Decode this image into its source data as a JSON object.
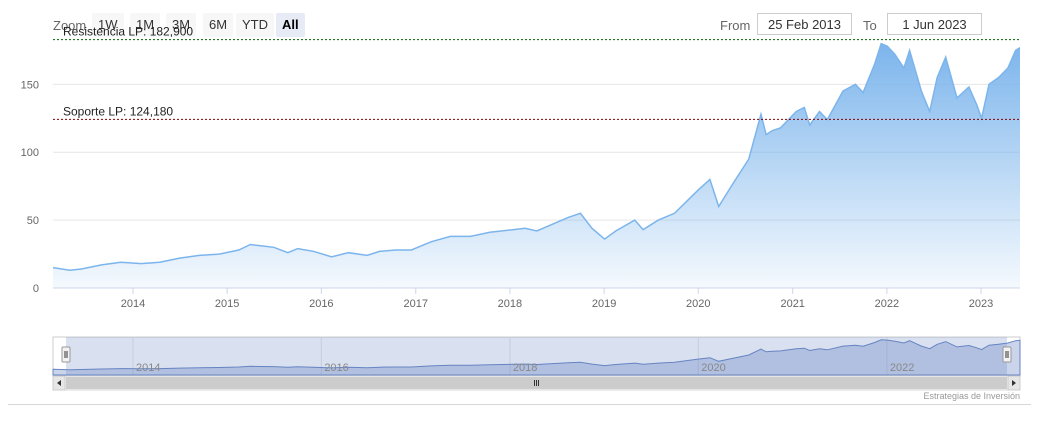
{
  "toolbar": {
    "zoom_label": "Zoom",
    "buttons": [
      "1W",
      "1M",
      "3M",
      "6M",
      "YTD",
      "All"
    ],
    "active": "All",
    "from_label": "From",
    "from_value": "25 Feb 2013",
    "to_label": "To",
    "to_value": "1 Jun 2023"
  },
  "credits": "Estrategias de Inversión",
  "colors": {
    "line": "#7cb5ec",
    "resistance": "#006400",
    "support": "#8b0000",
    "navigator": "#6685c2"
  },
  "chart_data": {
    "type": "area",
    "title": "",
    "xlabel": "",
    "ylabel": "",
    "x_ticks": [
      "2014",
      "2015",
      "2016",
      "2017",
      "2018",
      "2019",
      "2020",
      "2021",
      "2022",
      "2023"
    ],
    "y_ticks": [
      "0",
      "50",
      "100",
      "150"
    ],
    "ylim": [
      0,
      190
    ],
    "xlim": [
      "2013-02-25",
      "2023-06-01"
    ],
    "grid": true,
    "annotations": [
      {
        "label": "Resistencia LP: 182,900",
        "value": 182.9,
        "style": "dashed",
        "color": "#006400"
      },
      {
        "label": "Soporte LP: 124,180",
        "value": 124.18,
        "style": "dashed",
        "color": "#8b0000"
      }
    ],
    "series": [
      {
        "x": [
          "2013-02-25",
          "2013-05-01",
          "2013-06-15",
          "2013-09-01",
          "2013-11-15",
          "2014-02-01",
          "2014-04-15",
          "2014-07-01",
          "2014-09-15",
          "2014-12-01",
          "2015-02-15",
          "2015-04-01",
          "2015-05-15",
          "2015-07-01",
          "2015-08-24",
          "2015-10-01",
          "2015-12-01",
          "2016-02-10",
          "2016-04-15",
          "2016-06-27",
          "2016-08-15",
          "2016-10-15",
          "2016-12-15",
          "2017-03-01",
          "2017-05-15",
          "2017-08-01",
          "2017-10-15",
          "2018-01-15",
          "2018-03-01",
          "2018-04-15",
          "2018-06-15",
          "2018-08-15",
          "2018-10-01",
          "2018-11-15",
          "2019-01-03",
          "2019-02-15",
          "2019-04-30",
          "2019-06-01",
          "2019-07-30",
          "2019-10-01",
          "2019-12-31",
          "2020-02-15",
          "2020-03-20",
          "2020-05-15",
          "2020-07-15",
          "2020-08-31",
          "2020-09-20",
          "2020-10-15",
          "2020-11-15",
          "2021-01-15",
          "2021-02-15",
          "2021-03-08",
          "2021-04-15",
          "2021-05-15",
          "2021-07-15",
          "2021-09-01",
          "2021-10-01",
          "2021-11-15",
          "2021-12-10",
          "2022-01-03",
          "2022-02-01",
          "2022-03-08",
          "2022-03-30",
          "2022-05-15",
          "2022-06-16",
          "2022-07-15",
          "2022-08-17",
          "2022-09-30",
          "2022-11-15",
          "2022-12-15",
          "2023-01-03",
          "2023-02-01",
          "2023-03-10",
          "2023-04-15",
          "2023-05-15",
          "2023-06-01"
        ],
        "values": [
          15,
          13,
          14,
          17,
          19,
          18,
          19,
          22,
          24,
          25,
          28,
          32,
          31,
          30,
          26,
          29,
          27,
          23,
          26,
          24,
          27,
          28,
          28,
          34,
          38,
          38,
          41,
          43,
          44,
          42,
          47,
          52,
          55,
          44,
          36,
          42,
          50,
          43,
          50,
          55,
          72,
          80,
          60,
          77,
          95,
          128,
          113,
          116,
          118,
          130,
          133,
          120,
          130,
          124,
          145,
          150,
          144,
          165,
          180,
          178,
          172,
          162,
          175,
          145,
          130,
          155,
          170,
          140,
          148,
          135,
          125,
          150,
          155,
          162,
          175,
          177
        ]
      }
    ],
    "navigator": {
      "x_ticks": [
        "2014",
        "2016",
        "2018",
        "2020",
        "2022"
      ]
    }
  }
}
